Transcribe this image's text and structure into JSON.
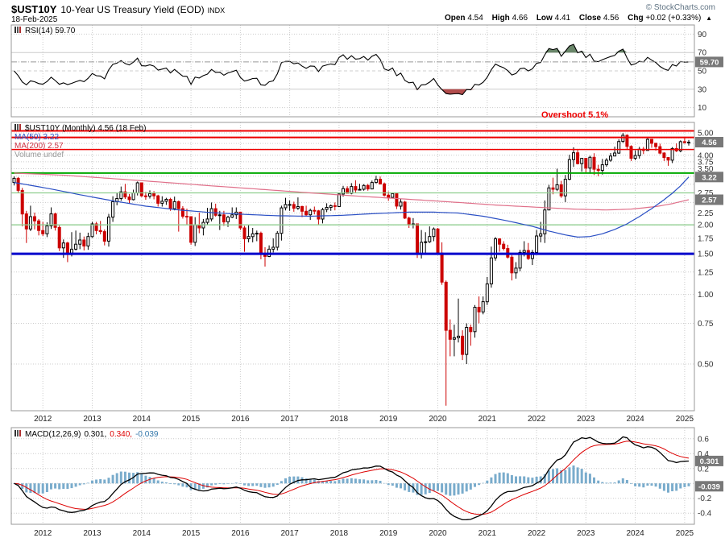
{
  "header": {
    "symbol": "$UST10Y",
    "title": "10-Year US Treasury Yield (EOD)",
    "exchange": "INDX",
    "copyright": "© StockCharts.com",
    "date": "18-Feb-2025",
    "quote": [
      {
        "label": "Open",
        "value": "4.54"
      },
      {
        "label": "High",
        "value": "4.66"
      },
      {
        "label": "Low",
        "value": "4.41"
      },
      {
        "label": "Close",
        "value": "4.56"
      },
      {
        "label": "Chg",
        "value": "+0.02 (+0.33%)"
      }
    ],
    "change_arrow": "▲"
  },
  "rsi_panel": {
    "legend": "RSI(14) 59.70",
    "last_value": 59.7,
    "last_label": "59.70",
    "ticks": [
      90,
      70,
      50,
      30,
      10
    ],
    "overbought": 70,
    "oversold": 30
  },
  "main_panel": {
    "legend_symbol": "$UST10Y (Monthly) 4.56 (18 Feb)",
    "legend_ma50": "MA(50) 3.22",
    "legend_ma200": "MA(200) 2.57",
    "legend_volume": "Volume undef",
    "annotation": "Overshoot 5.1%",
    "value_boxes": [
      {
        "value": 4.56,
        "label": "4.56"
      },
      {
        "value": 3.22,
        "label": "3.22"
      },
      {
        "value": 2.57,
        "label": "2.57"
      }
    ]
  },
  "macd_panel": {
    "legend_name": "MACD(12,26,9)",
    "legend_values": [
      "0.301,",
      "0.340,",
      "-0.039"
    ],
    "gridlines": [
      0.6,
      0.4,
      0.2,
      0.0,
      -0.2,
      -0.4
    ],
    "tick_labels": [
      {
        "value": 0.6,
        "label": "0.6"
      },
      {
        "value": 0.4,
        "label": "0.4"
      },
      {
        "value": 0.2,
        "label": "0.2"
      },
      {
        "value": -0.2,
        "label": "-0.2"
      },
      {
        "value": -0.4,
        "label": "-0.4"
      }
    ],
    "value_boxes": [
      {
        "value": 0.301,
        "label": "0.301"
      },
      {
        "value": -0.039,
        "label": "-0.039"
      }
    ]
  },
  "x_axis": {
    "years": [
      2012,
      2013,
      2014,
      2015,
      2016,
      2017,
      2018,
      2019,
      2020,
      2021,
      2022,
      2023,
      2024,
      2025
    ]
  },
  "colors": {
    "grid": "#cccccc",
    "border": "#999999",
    "candle_up": "#000000",
    "candle_down": "#cc0000",
    "ma50": "#2a4fc4",
    "ma200": "#e0708a",
    "annotation_red": "#ee0000",
    "annotation_green": "#00aa00",
    "annotation_green_light": "#8fce8f",
    "annotation_blue": "#0000cc",
    "rsi_line": "#000000",
    "rsi_overbought_fill": "#5a7a5a",
    "rsi_oversold_fill": "#aa3939",
    "macd_line": "#000000",
    "macd_signal": "#dd0000",
    "macd_histogram": "#7aaccc",
    "value_box_bg": "#787878",
    "value_box_text": "#ffffff",
    "axis_text": "#333333"
  },
  "chart_data": {
    "type": "candlestick",
    "title": "$UST10Y 10-Year US Treasury Yield (EOD) INDX",
    "timeframe": "Monthly",
    "start_month": "2011-06",
    "end_month": "2025-02",
    "y_scale": "log",
    "y_grid_min": 0.5,
    "y_grid_max": 5.0,
    "y_gridline_step": 0.25,
    "y_axis_labels": [
      5.0,
      4.0,
      3.75,
      3.5,
      2.75,
      2.25,
      2.0,
      1.75,
      1.5,
      1.25,
      1.0,
      0.75,
      0.5
    ],
    "ohlc": [
      [
        3.05,
        3.24,
        2.96,
        3.18
      ],
      [
        3.18,
        3.22,
        2.76,
        2.82
      ],
      [
        2.82,
        2.89,
        1.97,
        2.23
      ],
      [
        2.23,
        2.3,
        1.67,
        1.92
      ],
      [
        1.92,
        2.42,
        1.88,
        2.17
      ],
      [
        2.17,
        2.26,
        1.91,
        2.08
      ],
      [
        2.08,
        2.12,
        1.8,
        1.89
      ],
      [
        1.89,
        2.06,
        1.79,
        1.83
      ],
      [
        1.83,
        2.05,
        1.77,
        1.98
      ],
      [
        1.98,
        2.38,
        1.92,
        2.23
      ],
      [
        2.23,
        2.26,
        1.89,
        1.95
      ],
      [
        1.95,
        1.99,
        1.54,
        1.59
      ],
      [
        1.59,
        1.73,
        1.44,
        1.67
      ],
      [
        1.67,
        1.69,
        1.38,
        1.51
      ],
      [
        1.51,
        1.86,
        1.46,
        1.57
      ],
      [
        1.57,
        1.89,
        1.55,
        1.65
      ],
      [
        1.65,
        1.85,
        1.57,
        1.72
      ],
      [
        1.72,
        1.78,
        1.55,
        1.62
      ],
      [
        1.62,
        1.85,
        1.56,
        1.78
      ],
      [
        1.78,
        2.06,
        1.76,
        2.02
      ],
      [
        2.02,
        2.06,
        1.82,
        1.89
      ],
      [
        1.89,
        2.08,
        1.82,
        1.87
      ],
      [
        1.87,
        1.91,
        1.63,
        1.7
      ],
      [
        1.7,
        2.23,
        1.61,
        2.16
      ],
      [
        2.16,
        2.66,
        2.06,
        2.52
      ],
      [
        2.52,
        2.75,
        2.43,
        2.6
      ],
      [
        2.6,
        2.93,
        2.54,
        2.78
      ],
      [
        2.78,
        3.01,
        2.59,
        2.64
      ],
      [
        2.64,
        2.72,
        2.47,
        2.57
      ],
      [
        2.57,
        2.84,
        2.55,
        2.75
      ],
      [
        2.75,
        3.08,
        2.68,
        3.04
      ],
      [
        3.04,
        3.05,
        2.64,
        2.67
      ],
      [
        2.67,
        2.78,
        2.57,
        2.66
      ],
      [
        2.66,
        2.82,
        2.6,
        2.73
      ],
      [
        2.73,
        2.8,
        2.58,
        2.67
      ],
      [
        2.67,
        2.7,
        2.4,
        2.48
      ],
      [
        2.48,
        2.66,
        2.4,
        2.53
      ],
      [
        2.53,
        2.62,
        2.44,
        2.58
      ],
      [
        2.58,
        2.62,
        2.3,
        2.35
      ],
      [
        2.35,
        2.65,
        2.31,
        2.52
      ],
      [
        2.52,
        2.55,
        1.87,
        2.35
      ],
      [
        2.35,
        2.41,
        2.13,
        2.18
      ],
      [
        2.18,
        2.35,
        2.0,
        2.17
      ],
      [
        2.17,
        2.18,
        1.64,
        1.68
      ],
      [
        1.68,
        2.16,
        1.62,
        2.0
      ],
      [
        2.0,
        2.26,
        1.84,
        1.94
      ],
      [
        1.94,
        2.12,
        1.8,
        2.05
      ],
      [
        2.05,
        2.37,
        2.0,
        2.12
      ],
      [
        2.12,
        2.5,
        2.07,
        2.35
      ],
      [
        2.35,
        2.47,
        2.17,
        2.2
      ],
      [
        2.2,
        2.3,
        1.9,
        2.21
      ],
      [
        2.21,
        2.3,
        1.98,
        2.06
      ],
      [
        2.06,
        2.19,
        1.96,
        2.16
      ],
      [
        2.16,
        2.38,
        2.14,
        2.21
      ],
      [
        2.21,
        2.38,
        2.12,
        2.27
      ],
      [
        2.27,
        2.28,
        1.9,
        1.94
      ],
      [
        1.94,
        1.98,
        1.53,
        1.74
      ],
      [
        1.74,
        2.0,
        1.68,
        1.78
      ],
      [
        1.78,
        1.94,
        1.68,
        1.83
      ],
      [
        1.83,
        1.89,
        1.7,
        1.84
      ],
      [
        1.84,
        1.87,
        1.42,
        1.49
      ],
      [
        1.49,
        1.6,
        1.32,
        1.46
      ],
      [
        1.46,
        1.63,
        1.45,
        1.57
      ],
      [
        1.57,
        1.75,
        1.52,
        1.6
      ],
      [
        1.6,
        1.88,
        1.55,
        1.84
      ],
      [
        1.84,
        2.42,
        1.71,
        2.37
      ],
      [
        2.37,
        2.62,
        2.31,
        2.45
      ],
      [
        2.45,
        2.55,
        2.3,
        2.45
      ],
      [
        2.45,
        2.52,
        2.28,
        2.36
      ],
      [
        2.36,
        2.63,
        2.32,
        2.4
      ],
      [
        2.4,
        2.42,
        2.16,
        2.29
      ],
      [
        2.29,
        2.42,
        2.17,
        2.21
      ],
      [
        2.21,
        2.35,
        2.1,
        2.31
      ],
      [
        2.31,
        2.4,
        2.22,
        2.3
      ],
      [
        2.3,
        2.32,
        2.01,
        2.12
      ],
      [
        2.12,
        2.37,
        2.03,
        2.33
      ],
      [
        2.33,
        2.48,
        2.27,
        2.38
      ],
      [
        2.38,
        2.45,
        2.3,
        2.42
      ],
      [
        2.42,
        2.5,
        2.31,
        2.4
      ],
      [
        2.4,
        2.75,
        2.4,
        2.72
      ],
      [
        2.72,
        2.95,
        2.65,
        2.87
      ],
      [
        2.87,
        2.94,
        2.74,
        2.74
      ],
      [
        2.74,
        3.03,
        2.71,
        2.93
      ],
      [
        2.93,
        3.12,
        2.76,
        2.83
      ],
      [
        2.83,
        3.01,
        2.82,
        2.85
      ],
      [
        2.85,
        3.0,
        2.81,
        2.96
      ],
      [
        2.96,
        3.01,
        2.81,
        2.86
      ],
      [
        2.86,
        3.11,
        2.85,
        3.05
      ],
      [
        3.05,
        3.26,
        3.02,
        3.15
      ],
      [
        3.15,
        3.24,
        2.99,
        3.01
      ],
      [
        3.01,
        3.05,
        2.65,
        2.69
      ],
      [
        2.69,
        2.79,
        2.54,
        2.63
      ],
      [
        2.63,
        2.76,
        2.62,
        2.73
      ],
      [
        2.73,
        2.76,
        2.34,
        2.41
      ],
      [
        2.41,
        2.6,
        2.33,
        2.51
      ],
      [
        2.51,
        2.54,
        2.12,
        2.14
      ],
      [
        2.14,
        2.17,
        1.94,
        2.0
      ],
      [
        2.0,
        2.14,
        1.93,
        2.02
      ],
      [
        2.02,
        2.02,
        1.44,
        1.5
      ],
      [
        1.5,
        1.9,
        1.43,
        1.68
      ],
      [
        1.68,
        1.86,
        1.51,
        1.69
      ],
      [
        1.69,
        1.97,
        1.67,
        1.78
      ],
      [
        1.78,
        1.95,
        1.7,
        1.92
      ],
      [
        1.92,
        1.94,
        1.5,
        1.51
      ],
      [
        1.51,
        1.68,
        1.1,
        1.13
      ],
      [
        1.13,
        1.15,
        0.33,
        0.7
      ],
      [
        0.7,
        0.78,
        0.54,
        0.64
      ],
      [
        0.64,
        0.74,
        0.54,
        0.65
      ],
      [
        0.65,
        0.96,
        0.62,
        0.66
      ],
      [
        0.66,
        0.7,
        0.52,
        0.55
      ],
      [
        0.55,
        0.75,
        0.5,
        0.72
      ],
      [
        0.72,
        0.74,
        0.6,
        0.69
      ],
      [
        0.69,
        0.9,
        0.65,
        0.88
      ],
      [
        0.88,
        0.98,
        0.75,
        0.84
      ],
      [
        0.84,
        0.98,
        0.82,
        0.93
      ],
      [
        0.93,
        1.19,
        0.9,
        1.11
      ],
      [
        1.11,
        1.61,
        1.07,
        1.44
      ],
      [
        1.44,
        1.77,
        1.4,
        1.74
      ],
      [
        1.74,
        1.75,
        1.53,
        1.65
      ],
      [
        1.65,
        1.7,
        1.55,
        1.58
      ],
      [
        1.58,
        1.64,
        1.43,
        1.45
      ],
      [
        1.45,
        1.48,
        1.15,
        1.24
      ],
      [
        1.24,
        1.38,
        1.17,
        1.3
      ],
      [
        1.3,
        1.56,
        1.26,
        1.52
      ],
      [
        1.52,
        1.7,
        1.46,
        1.55
      ],
      [
        1.55,
        1.67,
        1.41,
        1.43
      ],
      [
        1.43,
        1.56,
        1.34,
        1.52
      ],
      [
        1.52,
        1.9,
        1.49,
        1.79
      ],
      [
        1.79,
        2.06,
        1.68,
        1.83
      ],
      [
        1.83,
        2.55,
        1.67,
        2.32
      ],
      [
        2.32,
        2.98,
        2.31,
        2.89
      ],
      [
        2.89,
        3.2,
        2.71,
        2.85
      ],
      [
        2.85,
        3.5,
        2.8,
        2.98
      ],
      [
        2.98,
        3.1,
        2.62,
        2.67
      ],
      [
        2.67,
        3.29,
        2.51,
        3.15
      ],
      [
        3.15,
        4.02,
        3.12,
        3.83
      ],
      [
        3.83,
        4.33,
        3.56,
        4.1
      ],
      [
        4.1,
        4.22,
        3.65,
        3.68
      ],
      [
        3.68,
        3.9,
        3.4,
        3.88
      ],
      [
        3.88,
        3.9,
        3.37,
        3.52
      ],
      [
        3.52,
        3.98,
        3.33,
        3.92
      ],
      [
        3.92,
        4.08,
        3.29,
        3.48
      ],
      [
        3.48,
        3.64,
        3.25,
        3.44
      ],
      [
        3.44,
        3.86,
        3.3,
        3.64
      ],
      [
        3.64,
        3.89,
        3.57,
        3.81
      ],
      [
        3.81,
        4.09,
        3.75,
        3.97
      ],
      [
        3.97,
        4.36,
        3.96,
        4.09
      ],
      [
        4.09,
        4.69,
        4.06,
        4.59
      ],
      [
        4.59,
        4.99,
        4.53,
        4.88
      ],
      [
        4.88,
        4.93,
        4.25,
        4.37
      ],
      [
        4.37,
        4.42,
        3.78,
        3.88
      ],
      [
        3.88,
        4.2,
        3.81,
        3.99
      ],
      [
        3.99,
        4.35,
        3.87,
        4.25
      ],
      [
        4.25,
        4.35,
        4.05,
        4.2
      ],
      [
        4.2,
        4.74,
        4.19,
        4.69
      ],
      [
        4.69,
        4.71,
        4.31,
        4.51
      ],
      [
        4.51,
        4.52,
        4.19,
        4.36
      ],
      [
        4.36,
        4.49,
        4.04,
        4.09
      ],
      [
        4.09,
        4.12,
        3.78,
        3.91
      ],
      [
        3.91,
        3.93,
        3.6,
        3.81
      ],
      [
        3.81,
        4.34,
        3.7,
        4.28
      ],
      [
        4.28,
        4.5,
        4.13,
        4.18
      ],
      [
        4.18,
        4.64,
        4.12,
        4.58
      ],
      [
        4.58,
        4.81,
        4.49,
        4.54
      ],
      [
        4.54,
        4.66,
        4.41,
        4.56
      ]
    ],
    "ma50_points": [
      [
        0,
        3.05
      ],
      [
        8,
        2.88
      ],
      [
        16,
        2.7
      ],
      [
        24,
        2.54
      ],
      [
        32,
        2.41
      ],
      [
        40,
        2.32
      ],
      [
        48,
        2.26
      ],
      [
        56,
        2.22
      ],
      [
        64,
        2.19
      ],
      [
        72,
        2.18
      ],
      [
        80,
        2.2
      ],
      [
        88,
        2.24
      ],
      [
        96,
        2.27
      ],
      [
        102,
        2.27
      ],
      [
        108,
        2.25
      ],
      [
        114,
        2.18
      ],
      [
        120,
        2.08
      ],
      [
        126,
        1.97
      ],
      [
        130,
        1.88
      ],
      [
        134,
        1.81
      ],
      [
        137,
        1.77
      ],
      [
        140,
        1.78
      ],
      [
        143,
        1.83
      ],
      [
        146,
        1.91
      ],
      [
        149,
        2.02
      ],
      [
        152,
        2.17
      ],
      [
        155,
        2.35
      ],
      [
        158,
        2.57
      ],
      [
        160,
        2.74
      ],
      [
        162,
        2.95
      ],
      [
        164,
        3.22
      ]
    ],
    "ma200_points": [
      [
        0,
        3.35
      ],
      [
        12,
        3.28
      ],
      [
        24,
        3.17
      ],
      [
        36,
        3.06
      ],
      [
        48,
        2.95
      ],
      [
        60,
        2.85
      ],
      [
        72,
        2.75
      ],
      [
        84,
        2.66
      ],
      [
        96,
        2.58
      ],
      [
        108,
        2.5
      ],
      [
        118,
        2.43
      ],
      [
        128,
        2.38
      ],
      [
        136,
        2.34
      ],
      [
        144,
        2.32
      ],
      [
        150,
        2.34
      ],
      [
        156,
        2.4
      ],
      [
        160,
        2.47
      ],
      [
        164,
        2.57
      ]
    ],
    "hlines": [
      {
        "value": 5.1,
        "color": "#ee0000",
        "width": 2
      },
      {
        "value": 4.78,
        "color": "#ee0000",
        "width": 2
      },
      {
        "value": 4.24,
        "color": "#ee0000",
        "width": 1.5
      },
      {
        "value": 3.35,
        "color": "#00aa00",
        "width": 2
      },
      {
        "value": 2.75,
        "color": "#8fce8f",
        "width": 1.3
      },
      {
        "value": 2.0,
        "color": "#8fce8f",
        "width": 1.3
      },
      {
        "value": 1.5,
        "color": "#0000cc",
        "width": 3
      }
    ],
    "indicators": {
      "rsi": {
        "period": 14,
        "last": 59.7
      },
      "macd": {
        "fast": 12,
        "slow": 26,
        "signal": 9,
        "macd_last": 0.301,
        "signal_last": 0.34,
        "hist_last": -0.039,
        "range": [
          -0.55,
          0.75
        ]
      }
    }
  }
}
